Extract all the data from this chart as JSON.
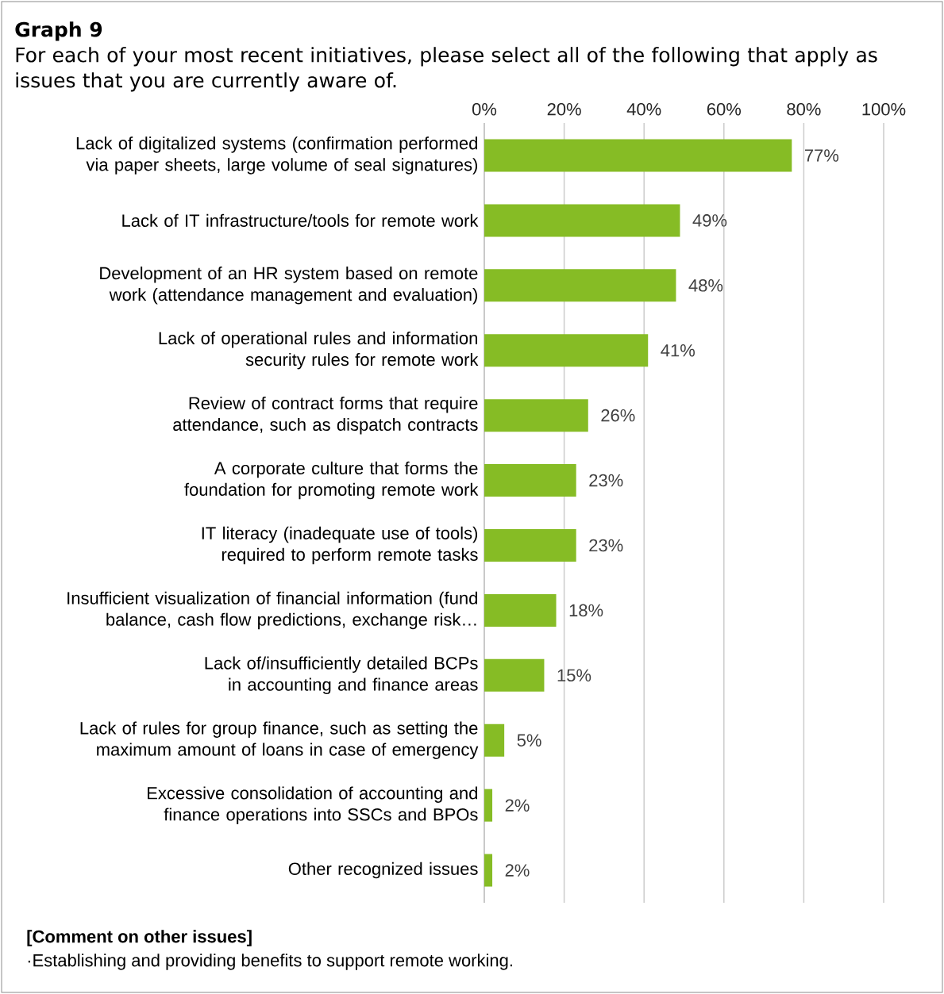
{
  "chart_data": {
    "type": "bar",
    "orientation": "horizontal",
    "title": "Graph 9",
    "subtitle": "For each of your most recent initiatives, please select all of the following that apply as issues that you are currently aware of.",
    "categories": [
      "Lack of digitalized systems (confirmation performed via paper sheets, large volume of seal signatures)",
      "Lack of IT infrastructure/tools for remote work",
      "Development of an HR system based on remote work (attendance management and evaluation)",
      "Lack of operational rules and information security rules for remote work",
      "Review of contract forms that require attendance, such as dispatch contracts",
      "A corporate culture that forms the foundation for promoting remote work",
      "IT literacy (inadequate use of tools) required to perform remote tasks",
      "Insufficient visualization of financial information (fund balance, cash flow predictions, exchange risk…",
      "Lack of/insufficiently detailed BCPs in accounting and finance areas",
      "Lack of rules for group finance, such as setting the maximum amount of loans in case of emergency",
      "Excessive consolidation of accounting and finance operations into SSCs and BPOs",
      "Other recognized issues"
    ],
    "values": [
      77,
      49,
      48,
      41,
      26,
      23,
      23,
      18,
      15,
      5,
      2,
      2
    ],
    "value_labels": [
      "77%",
      "49%",
      "48%",
      "41%",
      "26%",
      "23%",
      "23%",
      "18%",
      "15%",
      "5%",
      "2%",
      "2%"
    ],
    "color": "#86bc25",
    "xlim": [
      0,
      100
    ],
    "xticks": [
      {
        "value": 0,
        "label": "0%"
      },
      {
        "value": 20,
        "label": "20%"
      },
      {
        "value": 40,
        "label": "40%"
      },
      {
        "value": 60,
        "label": "60%"
      },
      {
        "value": 80,
        "label": "80%"
      },
      {
        "value": 100,
        "label": "100%"
      }
    ],
    "grid": "x",
    "annotations": [
      "[Comment on other issues]",
      "·Establishing and providing benefits to support remote working."
    ]
  }
}
